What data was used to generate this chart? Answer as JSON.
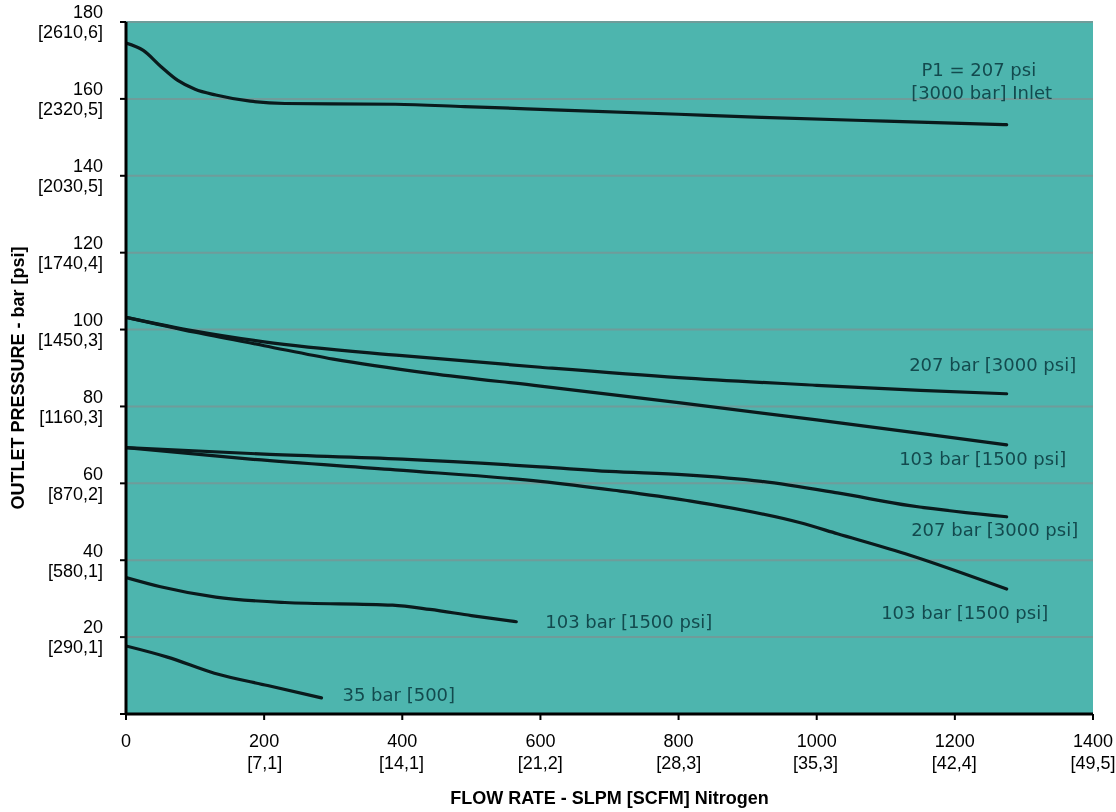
{
  "chart_data": {
    "type": "line",
    "xlabel": "FLOW RATE - SLPM [SCFM] Nitrogen",
    "ylabel": "OUTLET PRESSURE - bar [psi]",
    "xlim": [
      0,
      1400
    ],
    "xticks": [
      0,
      200,
      400,
      600,
      800,
      1000,
      1200,
      1400
    ],
    "x2lim": [
      0,
      49.5
    ],
    "x2ticks": [
      {
        "value": 7.1,
        "label": "[7,1]"
      },
      {
        "value": 14.1,
        "label": "[14,1]"
      },
      {
        "value": 21.2,
        "label": "[21,2]"
      },
      {
        "value": 28.3,
        "label": "[28,3]"
      },
      {
        "value": 35.3,
        "label": "[35,3]"
      },
      {
        "value": 42.4,
        "label": "[42,4]"
      },
      {
        "value": 49.5,
        "label": "[49,5]"
      }
    ],
    "ylim": [
      0,
      2610.6
    ],
    "yticks": [
      {
        "value": 290.1,
        "label": "[290,1]"
      },
      {
        "value": 580.1,
        "label": "[580,1]"
      },
      {
        "value": 870.2,
        "label": "[870,2]"
      },
      {
        "value": 1160.3,
        "label": "[1160,3]"
      },
      {
        "value": 1450.3,
        "label": "[1450,3]"
      },
      {
        "value": 1740.4,
        "label": "[1740,4]"
      },
      {
        "value": 2030.5,
        "label": "[2030,5]"
      },
      {
        "value": 2320.5,
        "label": "[2320,5]"
      },
      {
        "value": 2610.6,
        "label": "[2610,6]"
      }
    ],
    "y2lim": [
      0,
      180
    ],
    "y2ticks": [
      {
        "value": 0,
        "label": null
      },
      20,
      40,
      60,
      80,
      100,
      120,
      140,
      160,
      180
    ],
    "grid": "y",
    "legend": false,
    "marker": "none",
    "line_style": "solid",
    "series": [
      {
        "name": "P1 = 207 psi [3000 bar] Inlet",
        "axis": "y2",
        "color": "#0a1a1c",
        "x": [
          0,
          25,
          50,
          75,
          100,
          130,
          180,
          230,
          390,
          490,
          630,
          800,
          920,
          1100,
          1275
        ],
        "values": [
          174.5,
          172.6,
          168.5,
          164.8,
          162.5,
          161,
          159.4,
          158.8,
          158.6,
          158,
          157.1,
          156,
          155.2,
          154.2,
          153.3
        ]
      },
      {
        "name": "207 bar [3000 psi]",
        "axis": "y2",
        "color": "#0a1a1c",
        "x": [
          0,
          100,
          200,
          400,
          600,
          800,
          1000,
          1150,
          1275
        ],
        "values": [
          103.2,
          99.6,
          96.8,
          93.2,
          90.2,
          87.5,
          85.5,
          84.2,
          83.3
        ]
      },
      {
        "name": "103 bar [1500 psi]",
        "axis": "y2",
        "color": "#0a1a1c",
        "x": [
          0,
          100,
          200,
          300,
          440,
          600,
          800,
          1000,
          1150,
          1275
        ],
        "values": [
          103.2,
          99.3,
          95.8,
          92.3,
          88.6,
          85.3,
          81,
          76.5,
          73,
          70
        ]
      },
      {
        "name": "207 bar [3000 psi]",
        "axis": "y2",
        "color": "#0a1a1c",
        "x": [
          0,
          200,
          400,
          600,
          700,
          810,
          920,
          1030,
          1135,
          1275
        ],
        "values": [
          69.3,
          67.6,
          66.3,
          64.3,
          63.1,
          62.2,
          60.5,
          57.5,
          54.2,
          51.3
        ]
      },
      {
        "name": "103 bar [1500 psi]",
        "axis": "y2",
        "color": "#0a1a1c",
        "x": [
          0,
          180,
          390,
          600,
          706,
          810,
          975,
          1030,
          1135,
          1275
        ],
        "values": [
          69.3,
          66.3,
          63.5,
          60.5,
          58.2,
          55.6,
          49.8,
          46.9,
          41.3,
          32.5
        ]
      },
      {
        "name": "103 bar [1500 psi]",
        "axis": "y2",
        "color": "#0a1a1c",
        "x": [
          0,
          50,
          130,
          230,
          386,
          440,
          500,
          565
        ],
        "values": [
          35.5,
          33.1,
          30.4,
          29,
          28.3,
          27.2,
          25.6,
          24
        ]
      },
      {
        "name": "35 bar [500]",
        "axis": "y2",
        "color": "#0a1a1c",
        "x": [
          0,
          60,
          128,
          205,
          283
        ],
        "values": [
          17.7,
          14.8,
          10.6,
          7.4,
          4.2
        ]
      }
    ]
  }
}
